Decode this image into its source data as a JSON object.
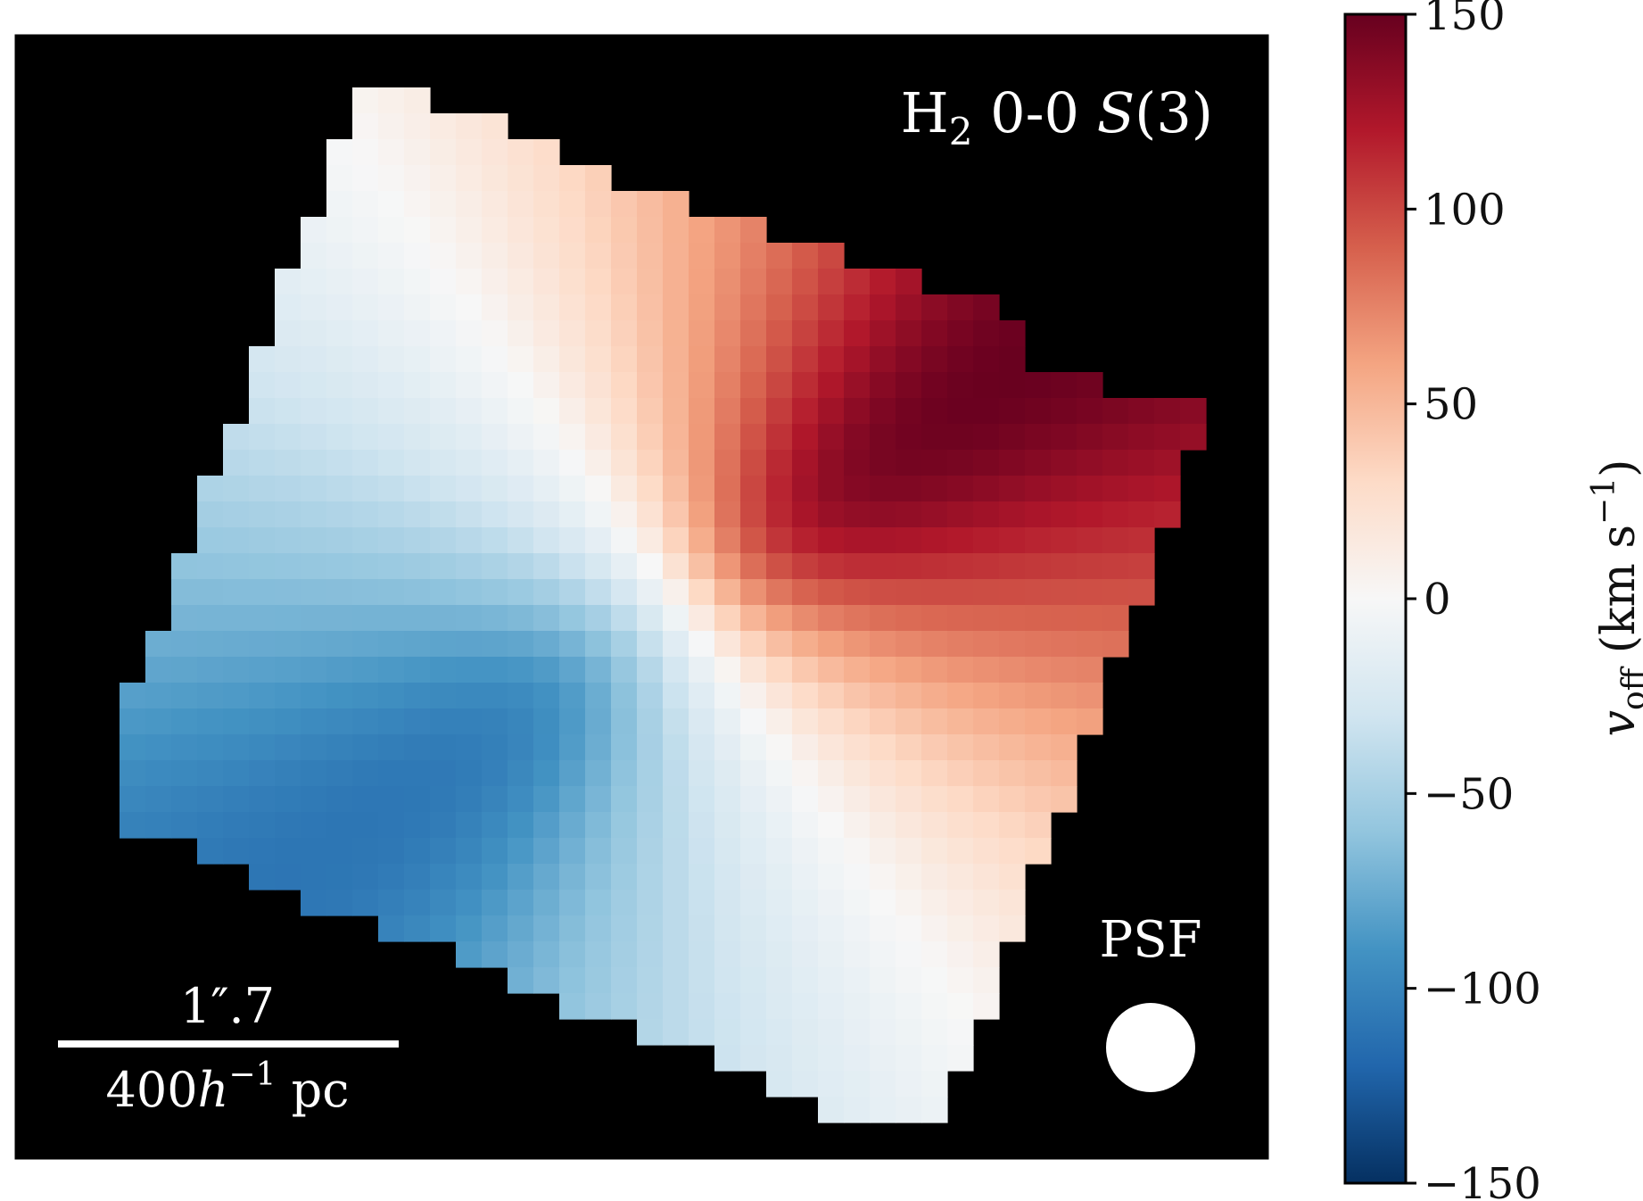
{
  "chart_data": {
    "type": "heatmap",
    "title": "",
    "panel_label": {
      "species": "H",
      "subscript": "2",
      "transition": " 0-0 ",
      "line": "S",
      "line_index": "(3)"
    },
    "colorbar": {
      "label_var": "v",
      "label_sub": "off",
      "label_units": " (km s",
      "label_exp": "−1",
      "label_close": ")",
      "range": [
        -150,
        150
      ],
      "ticks": [
        {
          "value": 150,
          "label": "150"
        },
        {
          "value": 100,
          "label": "100"
        },
        {
          "value": 50,
          "label": "50"
        },
        {
          "value": 0,
          "label": "0"
        },
        {
          "value": -50,
          "label": "−50"
        },
        {
          "value": -100,
          "label": "−100"
        },
        {
          "value": -150,
          "label": "−150"
        }
      ],
      "colormap": "RdBu_r",
      "stops": [
        "#053061",
        "#2166ac",
        "#4393c3",
        "#92c5de",
        "#d1e5f0",
        "#f7f7f7",
        "#fddbc7",
        "#f4a582",
        "#d6604d",
        "#b2182b",
        "#67001f"
      ]
    },
    "velocity_field": {
      "systemic_velocity": 0,
      "max_rotation": 150,
      "receding_side": "upper-right",
      "approaching_side": "lower-left",
      "peak_redshift": 150,
      "peak_blueshift": -110
    },
    "scale_bar": {
      "angular": "1″.7",
      "physical_value": "400",
      "physical_h": "h",
      "physical_exp": "−1",
      "physical_unit": " pc"
    },
    "psf_label": "PSF",
    "background": "#000000"
  }
}
